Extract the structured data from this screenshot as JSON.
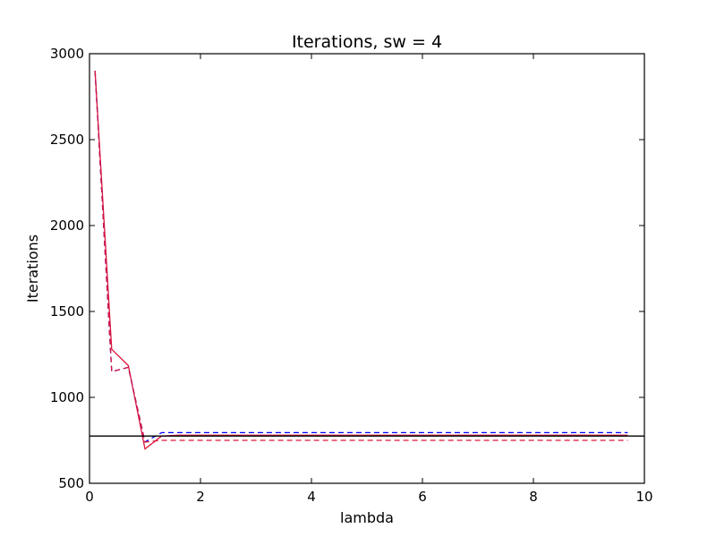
{
  "chart_data": {
    "type": "line",
    "title": "Iterations, sw = 4",
    "xlabel": "lambda",
    "ylabel": "Iterations",
    "xlim": [
      0,
      10
    ],
    "ylim": [
      500,
      3000
    ],
    "x_ticks": [
      "0",
      "2",
      "4",
      "6",
      "8",
      "10"
    ],
    "y_ticks": [
      "500",
      "1000",
      "1500",
      "2000",
      "2500",
      "3000"
    ],
    "grid": false,
    "legend": "none",
    "series": [
      {
        "color": "#dc143c",
        "style": "solid",
        "x": [
          0.1,
          0.4,
          0.7,
          1.0,
          1.3,
          1.6,
          2.0,
          3.0,
          4.0,
          5.0,
          6.0,
          7.0,
          8.0,
          9.0,
          9.7
        ],
        "y": [
          2900,
          1280,
          1185,
          700,
          775,
          780,
          780,
          780,
          780,
          780,
          780,
          780,
          780,
          780,
          780
        ]
      },
      {
        "color": "#0000ff",
        "style": "dashed",
        "x": [
          0.1,
          0.4,
          0.4,
          0.7,
          1.0,
          1.3,
          1.6,
          2.0,
          4.0,
          6.0,
          8.0,
          9.7
        ],
        "y": [
          2900,
          1150,
          1150,
          1175,
          740,
          795,
          795,
          795,
          795,
          795,
          795,
          795
        ]
      },
      {
        "color": "#dc143c",
        "style": "dashed",
        "x": [
          0.1,
          0.4,
          0.4,
          0.7,
          1.0,
          1.3,
          1.6,
          2.0,
          4.0,
          6.0,
          8.0,
          9.7
        ],
        "y": [
          2900,
          1150,
          1150,
          1175,
          740,
          750,
          750,
          750,
          750,
          750,
          750,
          750
        ]
      },
      {
        "color": "#000000",
        "style": "solid",
        "x": [
          0,
          10
        ],
        "y": [
          775,
          775
        ]
      }
    ]
  }
}
